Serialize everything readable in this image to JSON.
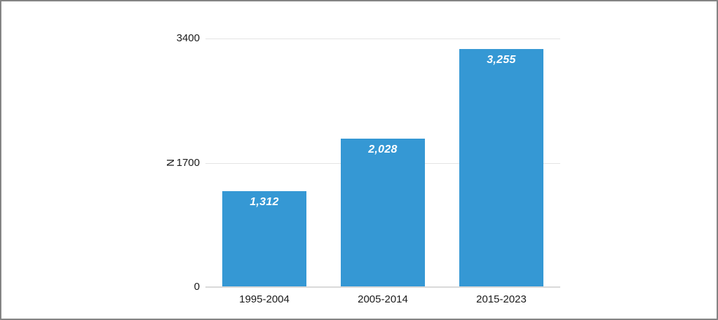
{
  "chart_data": {
    "type": "bar",
    "title": "",
    "categories": [
      "1995-2004",
      "2005-2014",
      "2015-2023"
    ],
    "values": [
      1312,
      2028,
      3255
    ],
    "value_labels": [
      "1,312",
      "2,028",
      "3,255"
    ],
    "xlabel": "",
    "ylabel": "N",
    "ylim": [
      0,
      3400
    ],
    "yticks": [
      0,
      1700,
      3400
    ],
    "ytick_labels": [
      "0",
      "1700",
      "3400"
    ],
    "grid": true,
    "legend": false,
    "colors": {
      "bar": "#3598d4",
      "value_label": "#ffffff",
      "gridline": "#e4e4e4",
      "baseline": "#d9d9d9",
      "tick_text": "#1a1a1a",
      "frame_border": "#848484",
      "background": "#ffffff"
    }
  }
}
